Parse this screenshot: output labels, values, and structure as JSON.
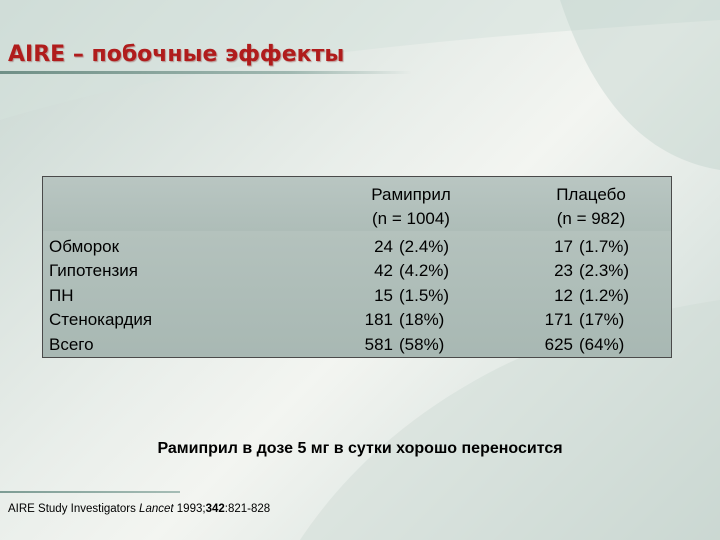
{
  "slide": {
    "title": "AIRE – побочные эффекты",
    "conclusion": "Рамиприл в дозе 5 мг в сутки хорошо переносится"
  },
  "table": {
    "columns": [
      {
        "name": "Рамиприл",
        "n": "(n = 1004)"
      },
      {
        "name": "Плацебо",
        "n": "(n = 982)"
      }
    ],
    "rows": [
      {
        "label": "Обморок",
        "ramipril": {
          "count": "24",
          "pct": "(2.4%)"
        },
        "placebo": {
          "count": "17",
          "pct": "(1.7%)"
        }
      },
      {
        "label": "Гипотензия",
        "ramipril": {
          "count": "42",
          "pct": "(4.2%)"
        },
        "placebo": {
          "count": "23",
          "pct": "(2.3%)"
        }
      },
      {
        "label": "ПН",
        "ramipril": {
          "count": "15",
          "pct": "(1.5%)"
        },
        "placebo": {
          "count": "12",
          "pct": "(1.2%)"
        }
      },
      {
        "label": "Стенокардия",
        "ramipril": {
          "count": "181",
          "pct": "(18%)"
        },
        "placebo": {
          "count": "171",
          "pct": "(17%)"
        }
      },
      {
        "label": "Всего",
        "ramipril": {
          "count": "581",
          "pct": "(58%)"
        },
        "placebo": {
          "count": "625",
          "pct": "(64%)"
        }
      }
    ]
  },
  "reference": {
    "authors": "AIRE Study Investigators ",
    "journal": "Lancet",
    "year": " 1993;",
    "volume": "342",
    "pages": ":821-828"
  },
  "colors": {
    "title": "#b01c1c",
    "table_bg": "#aebdb8",
    "background": "#e9eeea"
  }
}
